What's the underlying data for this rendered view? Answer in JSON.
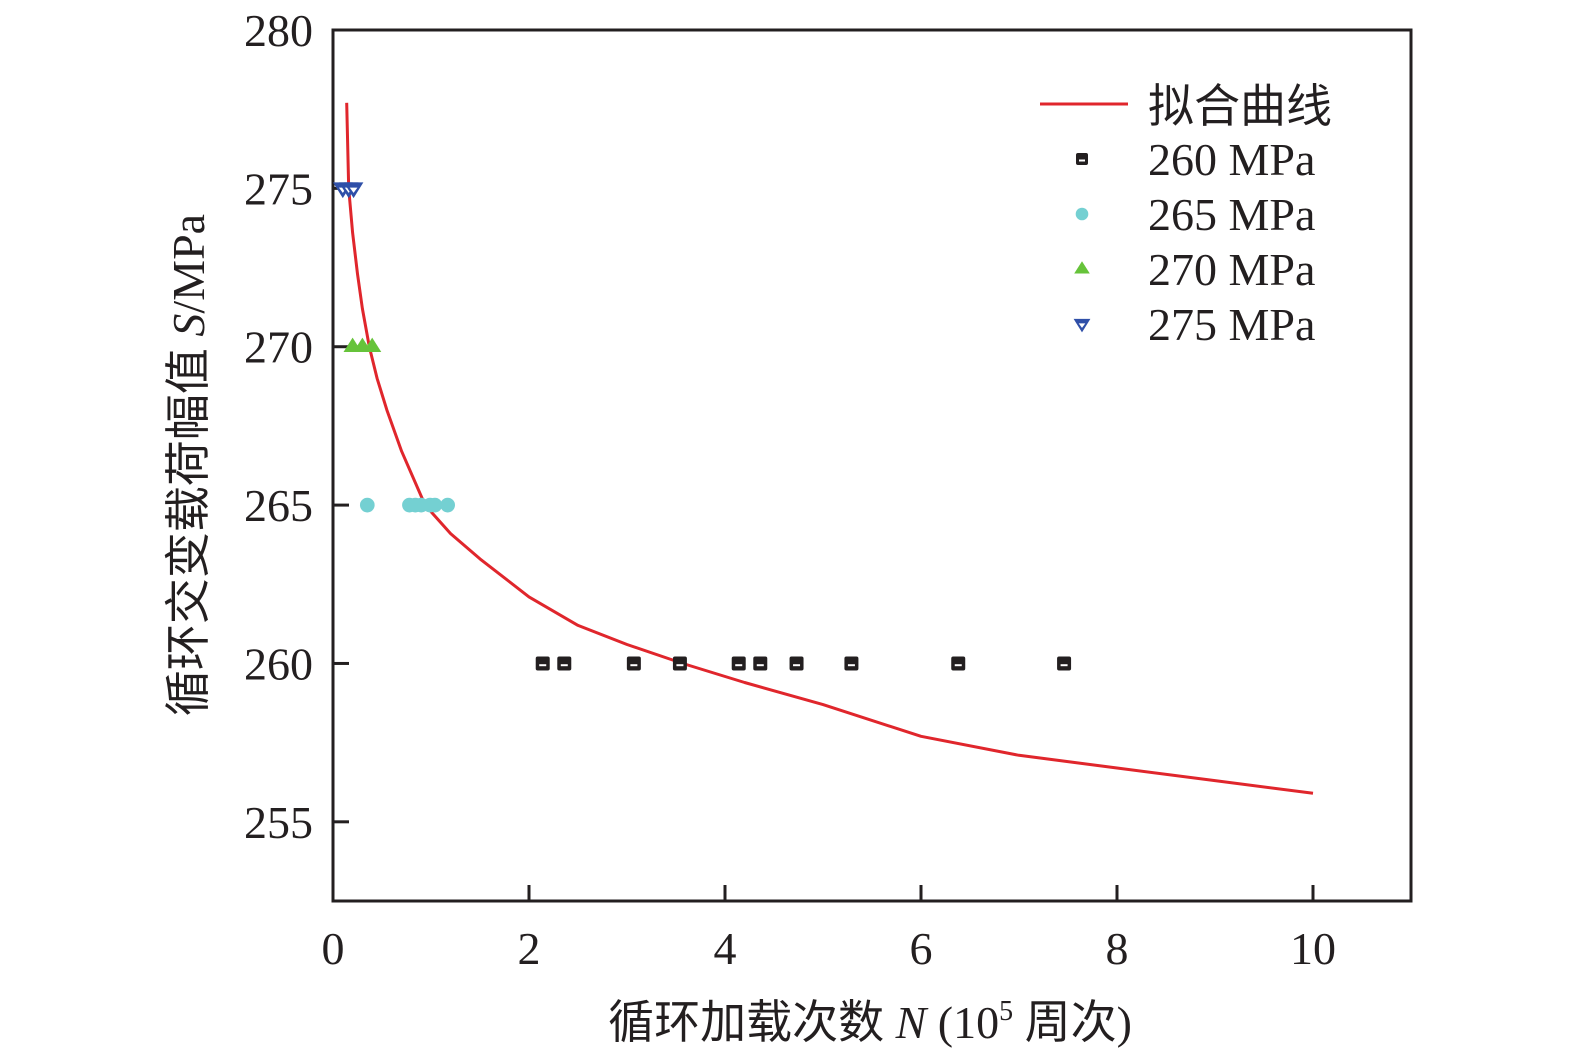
{
  "chart_data": {
    "type": "scatter",
    "title": "",
    "xlabel": {
      "prefix": "循环加载次数 ",
      "var": "N",
      "unit_open": " (10",
      "unit_sup": "5",
      "unit_close": " 周次)"
    },
    "ylabel": {
      "prefix": "循环交变载荷幅值 ",
      "var": "S",
      "unit": "/MPa"
    },
    "xlim": [
      0,
      11
    ],
    "ylim": [
      252.5,
      280
    ],
    "xticks": [
      0,
      2,
      4,
      6,
      8,
      10
    ],
    "xtick_labels": [
      "0",
      "2",
      "4",
      "6",
      "8",
      "10"
    ],
    "yticks": [
      255,
      260,
      265,
      270,
      275,
      280
    ],
    "ytick_labels": [
      "255",
      "260",
      "265",
      "270",
      "275",
      "280"
    ],
    "grid": false,
    "legend_position": "top-right",
    "fit_curve": {
      "name": "拟合曲线",
      "color": "#e0262c",
      "x": [
        0.14,
        0.16,
        0.2,
        0.25,
        0.3,
        0.37,
        0.45,
        0.55,
        0.7,
        0.94,
        1.2,
        1.5,
        2.0,
        2.5,
        3.0,
        3.57,
        4.2,
        5.0,
        6.0,
        7.0,
        8.0,
        9.0,
        10.0
      ],
      "y": [
        277.7,
        275.0,
        273.6,
        272.3,
        271.2,
        270.0,
        269.0,
        268.0,
        266.7,
        265.0,
        264.1,
        263.3,
        262.1,
        261.2,
        260.6,
        260.0,
        259.4,
        258.7,
        257.7,
        257.1,
        256.7,
        256.3,
        255.9
      ]
    },
    "series": [
      {
        "name": "260 MPa",
        "marker": "square",
        "color": "#231f20",
        "x": [
          2.14,
          2.36,
          3.07,
          3.54,
          4.14,
          4.36,
          4.73,
          5.29,
          6.38,
          7.46
        ],
        "y": [
          260,
          260,
          260,
          260,
          260,
          260,
          260,
          260,
          260,
          260
        ]
      },
      {
        "name": "265 MPa",
        "marker": "circle",
        "color": "#74d0d2",
        "x": [
          0.35,
          0.78,
          0.84,
          0.9,
          0.99,
          1.04,
          1.17
        ],
        "y": [
          265,
          265,
          265,
          265,
          265,
          265,
          265
        ]
      },
      {
        "name": "270 MPa",
        "marker": "triangle-up",
        "color": "#66c33a",
        "x": [
          0.2,
          0.3,
          0.4
        ],
        "y": [
          270,
          270,
          270
        ]
      },
      {
        "name": "275 MPa",
        "marker": "triangle-down",
        "color": "#2f4fa8",
        "x": [
          0.1,
          0.16,
          0.21
        ],
        "y": [
          275,
          275,
          275
        ]
      }
    ]
  }
}
